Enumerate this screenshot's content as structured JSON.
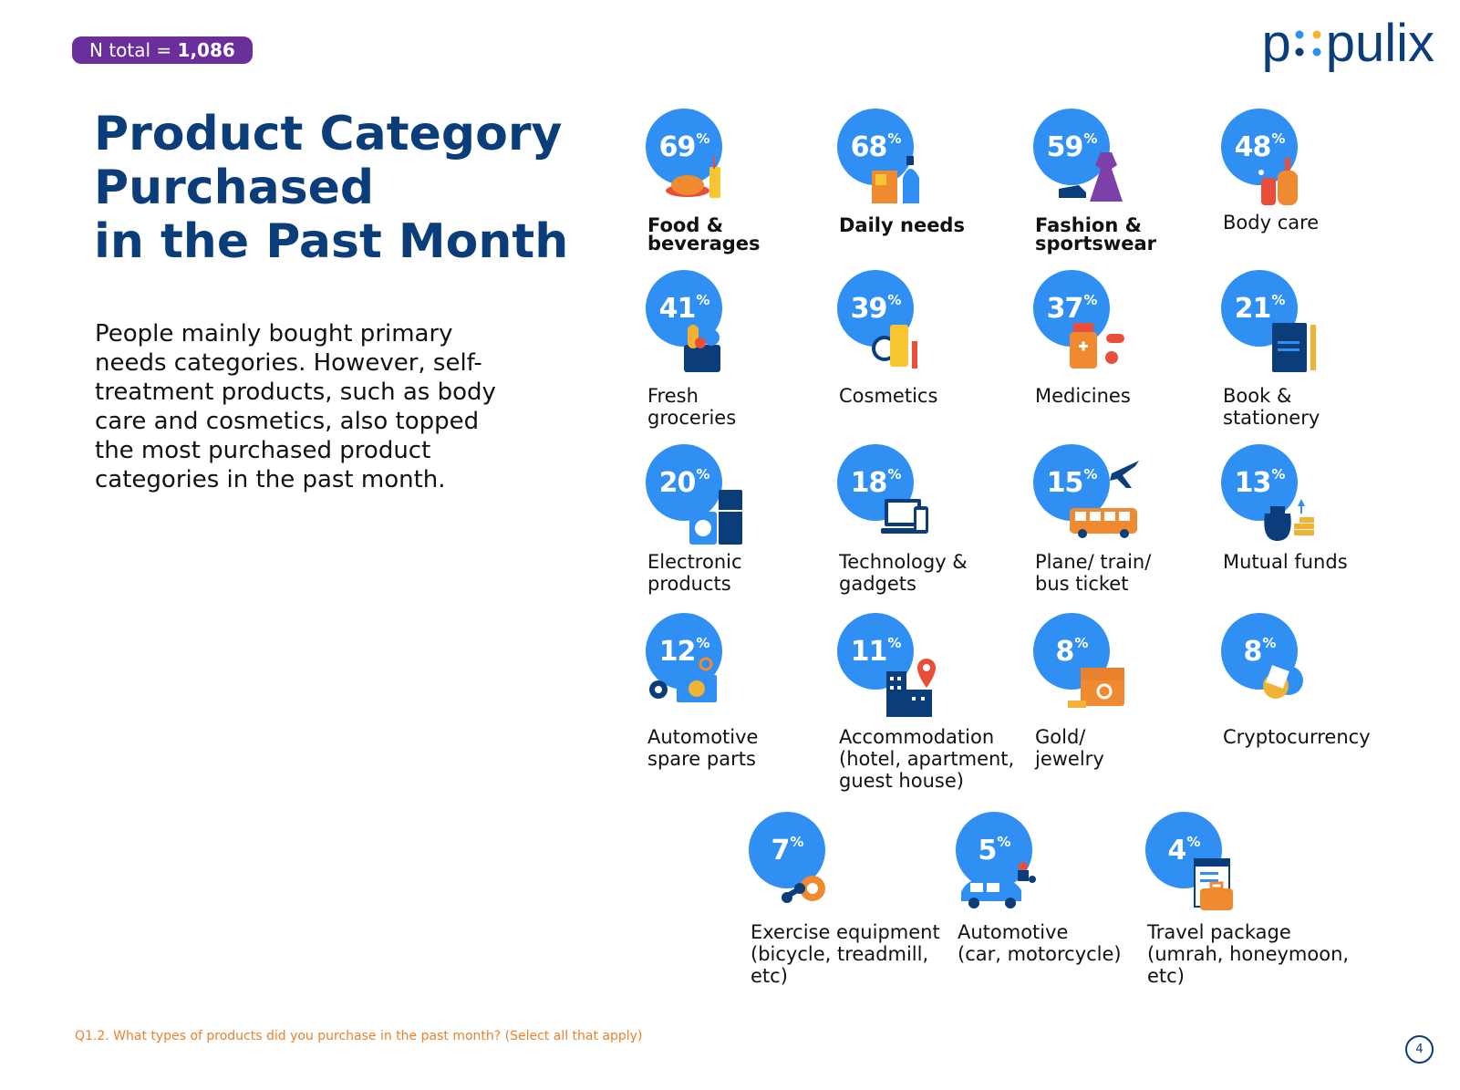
{
  "header": {
    "n_label": "N total = ",
    "n_value": "1,086",
    "logo_text_a": "p",
    "logo_text_b": "pulix"
  },
  "title": {
    "line1": "Product Category",
    "line2": "Purchased",
    "line3": "in the Past Month"
  },
  "description": "People mainly bought primary needs categories. However, self-treatment products, such as body care and cosmetics, also topped the most purchased product categories in the past month.",
  "categories": [
    {
      "pct": "69",
      "line1": "Food &",
      "line2": "beverages",
      "icon": "food-icon"
    },
    {
      "pct": "68",
      "line1": "Daily needs",
      "line2": "",
      "icon": "daily-needs-icon"
    },
    {
      "pct": "59",
      "line1": "Fashion &",
      "line2": "sportswear",
      "icon": "fashion-icon"
    },
    {
      "pct": "48",
      "line1": "Body care",
      "line2": "",
      "icon": "body-care-icon"
    },
    {
      "pct": "41",
      "line1": "Fresh",
      "line2": "groceries",
      "icon": "groceries-icon"
    },
    {
      "pct": "39",
      "line1": "Cosmetics",
      "line2": "",
      "icon": "cosmetics-icon"
    },
    {
      "pct": "37",
      "line1": "Medicines",
      "line2": "",
      "icon": "medicine-icon"
    },
    {
      "pct": "21",
      "line1": "Book &",
      "line2": "stationery",
      "icon": "book-icon"
    },
    {
      "pct": "20",
      "line1": "Electronic",
      "line2": "products",
      "icon": "electronics-icon"
    },
    {
      "pct": "18",
      "line1": "Technology &",
      "line2": "gadgets",
      "icon": "gadgets-icon"
    },
    {
      "pct": "15",
      "line1": "Plane/ train/",
      "line2": "bus ticket",
      "icon": "transport-icon"
    },
    {
      "pct": "13",
      "line1": "Mutual funds",
      "line2": "",
      "icon": "mutual-funds-icon"
    },
    {
      "pct": "12",
      "line1": "Automotive",
      "line2": "spare parts",
      "line3": "",
      "icon": "spare-parts-icon"
    },
    {
      "pct": "11",
      "line1": "Accommodation",
      "line2": "(hotel, apartment,",
      "line3": "guest house)",
      "icon": "accommodation-icon"
    },
    {
      "pct": "8",
      "line1": "Gold/",
      "line2": "jewelry",
      "line3": "",
      "icon": "gold-icon"
    },
    {
      "pct": "8",
      "line1": "Cryptocurrency",
      "line2": "",
      "line3": "",
      "icon": "crypto-icon"
    },
    {
      "pct": "7",
      "line1": "Exercise equipment",
      "line2": "(bicycle, treadmill,",
      "line3": "etc)",
      "icon": "exercise-icon"
    },
    {
      "pct": "5",
      "line1": "Automotive",
      "line2": "(car, motorcycle)",
      "line3": "",
      "icon": "vehicle-icon"
    },
    {
      "pct": "4",
      "line1": "Travel package",
      "line2": "(umrah, honeymoon,",
      "line3": "etc)",
      "icon": "travel-icon"
    }
  ],
  "percent_sign": "%",
  "footnote": "Q1.2. What types of products did you purchase in the past month? (Select all that apply)",
  "page_number": "4",
  "colors": {
    "brand": "#0a3d79",
    "circle": "#2f8ff3",
    "badge": "#6b2f9c",
    "footnote": "#e9822f"
  }
}
